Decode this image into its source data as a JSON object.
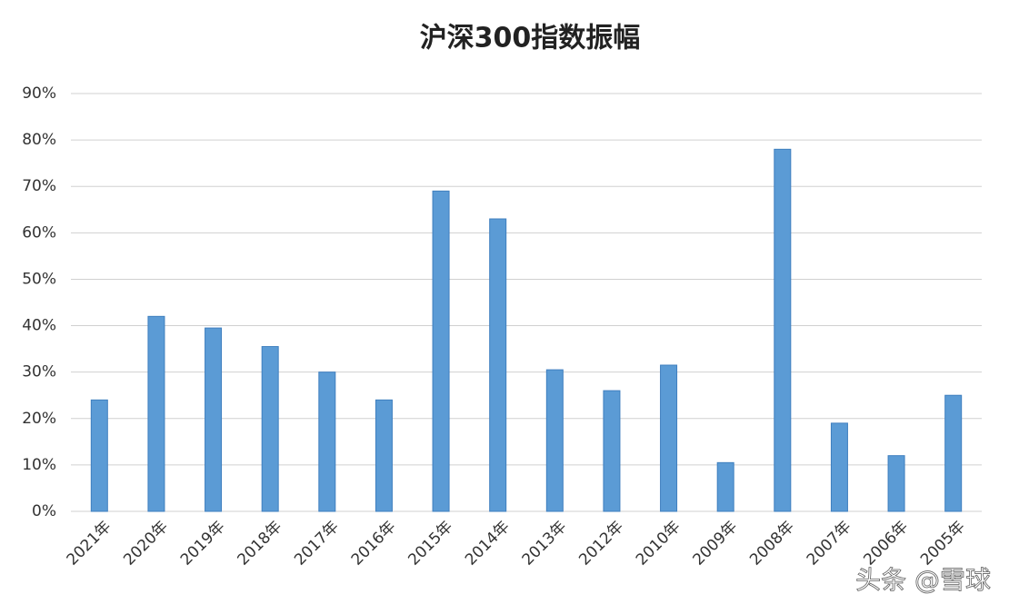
{
  "chart_data": {
    "type": "bar",
    "title": "沪深300指数振幅",
    "categories": [
      "2021年",
      "2020年",
      "2019年",
      "2018年",
      "2017年",
      "2016年",
      "2015年",
      "2014年",
      "2013年",
      "2012年",
      "2010年",
      "2009年",
      "2008年",
      "2007年",
      "2006年",
      "2005年"
    ],
    "values": [
      24,
      42,
      39.5,
      35.5,
      30,
      24,
      69,
      63,
      30.5,
      26,
      31.5,
      10.5,
      78,
      19,
      12,
      25
    ],
    "color": "#5b9bd5",
    "ylim": [
      0,
      90
    ],
    "yticks": [
      {
        "value": 0,
        "label": "0%"
      },
      {
        "value": 10,
        "label": "10%"
      },
      {
        "value": 20,
        "label": "20%"
      },
      {
        "value": 30,
        "label": "30%"
      },
      {
        "value": 40,
        "label": "40%"
      },
      {
        "value": 50,
        "label": "50%"
      },
      {
        "value": 60,
        "label": "60%"
      },
      {
        "value": 70,
        "label": "70%"
      },
      {
        "value": 80,
        "label": "80%"
      },
      {
        "value": 90,
        "label": "90%"
      }
    ],
    "grid": true,
    "watermark": "头条 @雪球"
  }
}
